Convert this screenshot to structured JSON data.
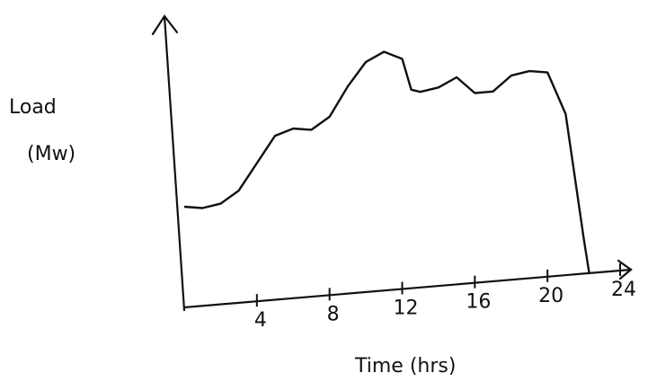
{
  "chart_data": {
    "type": "line",
    "y_label": [
      "Load",
      "(Mw)"
    ],
    "x_label": "Time (hrs)",
    "x": [
      0,
      1,
      2,
      3,
      4,
      5,
      6,
      7,
      8,
      9,
      10,
      11,
      12,
      12.5,
      13,
      14,
      15,
      16,
      17,
      18,
      19,
      20,
      21,
      22,
      22.3
    ],
    "values": [
      35,
      34,
      35,
      39,
      48,
      57,
      59,
      58,
      62,
      72,
      80,
      83,
      80,
      69,
      68,
      69,
      72,
      66,
      66,
      71,
      72,
      71,
      56,
      12,
      0
    ],
    "color": "#111111",
    "xlim": [
      0,
      24
    ],
    "xticks": [
      4,
      8,
      12,
      16,
      20,
      24
    ],
    "ylim": [
      0,
      100
    ]
  }
}
